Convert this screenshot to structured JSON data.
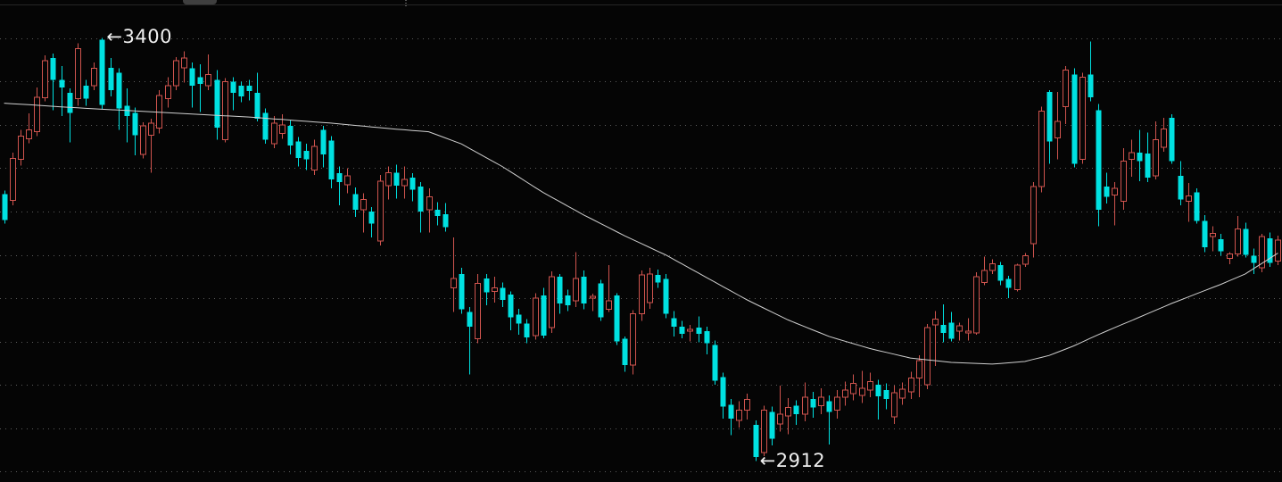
{
  "chart": {
    "description": "candlestick price chart with moving average on black background"
  },
  "annotations": {
    "high_label": "←3400",
    "low_label": "←2912",
    "high_value": 3400,
    "low_value": 2912,
    "high_index": 12,
    "low_index": 92,
    "label_color": "#efefef"
  },
  "chrome": {
    "top_border_color": "#262626",
    "tab_artifact_color": "#3f3f3f"
  },
  "chart_data": {
    "type": "candlestick",
    "title": "",
    "xlabel": "",
    "ylabel": "",
    "ylim": [
      2888,
      3444
    ],
    "grid": "dotted-horizontal",
    "price_gridlines": [
      3400,
      3350,
      3300,
      3250,
      3200,
      3150,
      3100,
      3050,
      3000,
      2950,
      2900
    ],
    "colors": {
      "up_hollow": "#d0544e",
      "down_filled": "#00e1e1",
      "ma_line": "#d0d0d0",
      "grid_dots": "#666666",
      "background": "#050505"
    },
    "legend": [],
    "series_note": "candles are [open, high, low, close]; up days drawn as hollow red outlines, down days as filled cyan",
    "candles": [
      [
        3220,
        3224,
        3186,
        3190
      ],
      [
        3213,
        3268,
        3207,
        3261
      ],
      [
        3260,
        3294,
        3253,
        3287
      ],
      [
        3284,
        3313,
        3279,
        3294
      ],
      [
        3292,
        3343,
        3287,
        3332
      ],
      [
        3331,
        3380,
        3327,
        3374
      ],
      [
        3377,
        3382,
        3317,
        3352
      ],
      [
        3352,
        3368,
        3310,
        3343
      ],
      [
        3337,
        3342,
        3280,
        3314
      ],
      [
        3330,
        3394,
        3322,
        3388
      ],
      [
        3345,
        3352,
        3322,
        3330
      ],
      [
        3345,
        3372,
        3340,
        3365
      ],
      [
        3398,
        3400,
        3318,
        3323
      ],
      [
        3366,
        3377,
        3333,
        3340
      ],
      [
        3360,
        3365,
        3294,
        3319
      ],
      [
        3322,
        3342,
        3280,
        3310
      ],
      [
        3314,
        3320,
        3265,
        3288
      ],
      [
        3266,
        3303,
        3261,
        3299
      ],
      [
        3288,
        3307,
        3245,
        3302
      ],
      [
        3296,
        3340,
        3290,
        3334
      ],
      [
        3330,
        3355,
        3320,
        3345
      ],
      [
        3345,
        3378,
        3340,
        3374
      ],
      [
        3366,
        3385,
        3349,
        3377
      ],
      [
        3365,
        3372,
        3320,
        3345
      ],
      [
        3355,
        3370,
        3315,
        3347
      ],
      [
        3345,
        3381,
        3340,
        3358
      ],
      [
        3352,
        3363,
        3283,
        3297
      ],
      [
        3283,
        3354,
        3280,
        3350
      ],
      [
        3350,
        3355,
        3317,
        3337
      ],
      [
        3345,
        3350,
        3326,
        3333
      ],
      [
        3345,
        3352,
        3328,
        3339
      ],
      [
        3337,
        3360,
        3304,
        3307
      ],
      [
        3314,
        3319,
        3278,
        3283
      ],
      [
        3278,
        3310,
        3273,
        3302
      ],
      [
        3290,
        3312,
        3284,
        3300
      ],
      [
        3299,
        3305,
        3266,
        3276
      ],
      [
        3281,
        3286,
        3252,
        3262
      ],
      [
        3270,
        3278,
        3248,
        3260
      ],
      [
        3248,
        3283,
        3242,
        3275
      ],
      [
        3294,
        3299,
        3251,
        3266
      ],
      [
        3282,
        3287,
        3227,
        3237
      ],
      [
        3244,
        3252,
        3207,
        3234
      ],
      [
        3231,
        3250,
        3221,
        3241
      ],
      [
        3220,
        3228,
        3194,
        3202
      ],
      [
        3202,
        3221,
        3176,
        3214
      ],
      [
        3200,
        3205,
        3170,
        3186
      ],
      [
        3166,
        3242,
        3161,
        3235
      ],
      [
        3230,
        3252,
        3214,
        3245
      ],
      [
        3245,
        3254,
        3215,
        3230
      ],
      [
        3230,
        3252,
        3215,
        3237
      ],
      [
        3239,
        3244,
        3212,
        3225
      ],
      [
        3229,
        3234,
        3176,
        3200
      ],
      [
        3202,
        3227,
        3176,
        3217
      ],
      [
        3202,
        3211,
        3184,
        3195
      ],
      [
        3197,
        3210,
        3177,
        3182
      ],
      [
        3112,
        3170,
        3084,
        3123
      ],
      [
        3128,
        3135,
        3082,
        3087
      ],
      [
        3084,
        3090,
        3012,
        3067
      ],
      [
        3053,
        3128,
        3048,
        3117
      ],
      [
        3123,
        3128,
        3092,
        3107
      ],
      [
        3108,
        3125,
        3095,
        3112
      ],
      [
        3112,
        3118,
        3090,
        3098
      ],
      [
        3104,
        3108,
        3063,
        3078
      ],
      [
        3081,
        3088,
        3058,
        3071
      ],
      [
        3071,
        3076,
        3048,
        3055
      ],
      [
        3057,
        3106,
        3052,
        3100
      ],
      [
        3103,
        3112,
        3054,
        3057
      ],
      [
        3066,
        3131,
        3060,
        3125
      ],
      [
        3125,
        3128,
        3082,
        3094
      ],
      [
        3103,
        3110,
        3085,
        3092
      ],
      [
        3097,
        3153,
        3090,
        3123
      ],
      [
        3125,
        3132,
        3087,
        3094
      ],
      [
        3100,
        3105,
        3085,
        3102
      ],
      [
        3117,
        3121,
        3074,
        3078
      ],
      [
        3087,
        3138,
        3084,
        3097
      ],
      [
        3103,
        3106,
        3046,
        3050
      ],
      [
        3053,
        3056,
        3015,
        3023
      ],
      [
        3023,
        3086,
        3012,
        3082
      ],
      [
        3082,
        3132,
        3074,
        3127
      ],
      [
        3095,
        3135,
        3088,
        3128
      ],
      [
        3127,
        3133,
        3112,
        3118
      ],
      [
        3122,
        3128,
        3077,
        3082
      ],
      [
        3077,
        3085,
        3056,
        3067
      ],
      [
        3067,
        3074,
        3054,
        3059
      ],
      [
        3062,
        3069,
        3050,
        3064
      ],
      [
        3066,
        3079,
        3049,
        3059
      ],
      [
        3062,
        3067,
        3035,
        3048
      ],
      [
        3046,
        3051,
        3000,
        3005
      ],
      [
        3009,
        3014,
        2961,
        2975
      ],
      [
        2977,
        2984,
        2942,
        2961
      ],
      [
        2959,
        2981,
        2951,
        2971
      ],
      [
        2971,
        2990,
        2960,
        2983
      ],
      [
        2954,
        2959,
        2912,
        2917
      ],
      [
        2922,
        2976,
        2918,
        2971
      ],
      [
        2969,
        2975,
        2930,
        2938
      ],
      [
        2955,
        2999,
        2946,
        2966
      ],
      [
        2964,
        2985,
        2943,
        2974
      ],
      [
        2976,
        2982,
        2954,
        2966
      ],
      [
        2966,
        3003,
        2958,
        2986
      ],
      [
        2984,
        2992,
        2962,
        2974
      ],
      [
        2976,
        2996,
        2966,
        2986
      ],
      [
        2981,
        2988,
        2931,
        2969
      ],
      [
        2971,
        2994,
        2961,
        2986
      ],
      [
        2986,
        3004,
        2976,
        2994
      ],
      [
        2990,
        3012,
        2982,
        3002
      ],
      [
        2988,
        3016,
        2979,
        2996
      ],
      [
        2994,
        3014,
        2986,
        3004
      ],
      [
        3000,
        3006,
        2960,
        2987
      ],
      [
        2994,
        3002,
        2972,
        2984
      ],
      [
        2963,
        2999,
        2955,
        2991
      ],
      [
        2985,
        3003,
        2977,
        2995
      ],
      [
        2992,
        3015,
        2984,
        3008
      ],
      [
        3008,
        3034,
        2986,
        3028
      ],
      [
        3000,
        3070,
        2995,
        3066
      ],
      [
        3069,
        3085,
        3022,
        3076
      ],
      [
        3069,
        3093,
        3049,
        3060
      ],
      [
        3072,
        3084,
        3050,
        3053
      ],
      [
        3062,
        3072,
        3051,
        3068
      ],
      [
        3060,
        3077,
        3051,
        3062
      ],
      [
        3060,
        3130,
        3058,
        3125
      ],
      [
        3118,
        3148,
        3115,
        3132
      ],
      [
        3132,
        3145,
        3128,
        3140
      ],
      [
        3138,
        3142,
        3115,
        3120
      ],
      [
        3122,
        3126,
        3100,
        3112
      ],
      [
        3110,
        3140,
        3108,
        3138
      ],
      [
        3139,
        3152,
        3136,
        3149
      ],
      [
        3163,
        3234,
        3147,
        3229
      ],
      [
        3229,
        3321,
        3222,
        3316
      ],
      [
        3338,
        3340,
        3255,
        3281
      ],
      [
        3285,
        3338,
        3260,
        3304
      ],
      [
        3321,
        3368,
        3301,
        3363
      ],
      [
        3358,
        3365,
        3251,
        3255
      ],
      [
        3260,
        3360,
        3255,
        3355
      ],
      [
        3358,
        3396,
        3327,
        3332
      ],
      [
        3317,
        3324,
        3183,
        3202
      ],
      [
        3229,
        3245,
        3209,
        3217
      ],
      [
        3219,
        3234,
        3184,
        3227
      ],
      [
        3212,
        3273,
        3202,
        3258
      ],
      [
        3260,
        3283,
        3240,
        3268
      ],
      [
        3268,
        3294,
        3235,
        3258
      ],
      [
        3267,
        3291,
        3234,
        3239
      ],
      [
        3241,
        3304,
        3237,
        3283
      ],
      [
        3274,
        3308,
        3269,
        3295
      ],
      [
        3308,
        3312,
        3255,
        3258
      ],
      [
        3241,
        3258,
        3207,
        3214
      ],
      [
        3212,
        3233,
        3188,
        3218
      ],
      [
        3222,
        3227,
        3186,
        3189
      ],
      [
        3189,
        3196,
        3153,
        3159
      ],
      [
        3171,
        3183,
        3154,
        3175
      ],
      [
        3168,
        3174,
        3149,
        3154
      ],
      [
        3146,
        3153,
        3139,
        3151
      ],
      [
        3151,
        3195,
        3148,
        3180
      ],
      [
        3180,
        3187,
        3147,
        3150
      ],
      [
        3149,
        3157,
        3128,
        3141
      ],
      [
        3135,
        3174,
        3130,
        3171
      ],
      [
        3169,
        3176,
        3136,
        3141
      ],
      [
        3143,
        3172,
        3138,
        3167
      ]
    ],
    "ma_points": [
      [
        0,
        3325
      ],
      [
        10,
        3319
      ],
      [
        20,
        3314
      ],
      [
        30,
        3309
      ],
      [
        40,
        3302
      ],
      [
        48,
        3295
      ],
      [
        52,
        3292
      ],
      [
        56,
        3278
      ],
      [
        61,
        3252
      ],
      [
        66,
        3222
      ],
      [
        71,
        3196
      ],
      [
        76,
        3172
      ],
      [
        81,
        3150
      ],
      [
        86,
        3124
      ],
      [
        91,
        3098
      ],
      [
        96,
        3075
      ],
      [
        101,
        3056
      ],
      [
        106,
        3042
      ],
      [
        111,
        3031
      ],
      [
        116,
        3026
      ],
      [
        121,
        3024
      ],
      [
        125,
        3027
      ],
      [
        128,
        3034
      ],
      [
        131,
        3045
      ],
      [
        134,
        3058
      ],
      [
        137,
        3070
      ],
      [
        140,
        3082
      ],
      [
        143,
        3094
      ],
      [
        146,
        3105
      ],
      [
        149,
        3116
      ],
      [
        152,
        3128
      ],
      [
        154,
        3140
      ],
      [
        156,
        3152
      ]
    ],
    "ma_name": "moving-average"
  }
}
